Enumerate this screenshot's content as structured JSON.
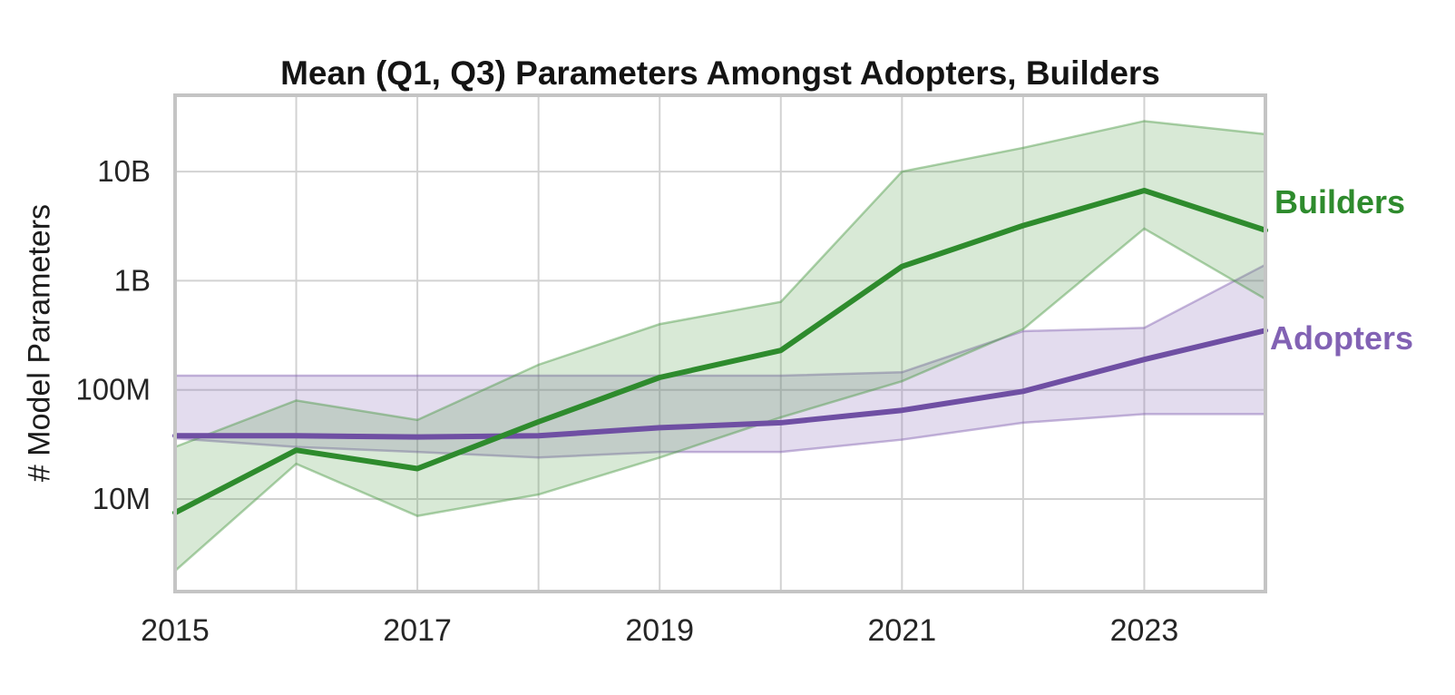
{
  "chart_data": {
    "type": "line",
    "title": "Mean (Q1, Q3) Parameters Amongst Adopters, Builders",
    "xlabel": "",
    "ylabel": "# Model Parameters",
    "y_scale": "log",
    "ylim": [
      1420000,
      50000000000
    ],
    "xlim": [
      2015,
      2024
    ],
    "grid": true,
    "legend_position": "right-outside-line-end",
    "x": [
      2015,
      2016,
      2017,
      2018,
      2019,
      2020,
      2021,
      2022,
      2023,
      2024
    ],
    "x_ticks": [
      {
        "value": 2015,
        "label": "2015"
      },
      {
        "value": 2017,
        "label": "2017"
      },
      {
        "value": 2019,
        "label": "2019"
      },
      {
        "value": 2021,
        "label": "2021"
      },
      {
        "value": 2023,
        "label": "2023"
      }
    ],
    "y_ticks": [
      {
        "value": 10000000000,
        "label": "10B"
      },
      {
        "value": 1000000000,
        "label": "1B"
      },
      {
        "value": 100000000,
        "label": "100M"
      },
      {
        "value": 10000000,
        "label": "10M"
      }
    ],
    "series": [
      {
        "name": "Builders",
        "color": "#2e8b2d",
        "label_color": "#2e8b2d",
        "band_description": "Q1-Q3 interquartile band",
        "mean": [
          7500000,
          28000000,
          19000000,
          51000000,
          130000000,
          230000000,
          1350000000,
          3200000000,
          6700000000,
          2900000000
        ],
        "q1": [
          2200000,
          21000000,
          7000000,
          11000000,
          24000000,
          56000000,
          120000000,
          360000000,
          3000000000,
          680000000
        ],
        "q3": [
          30000000,
          80000000,
          53000000,
          170000000,
          400000000,
          640000000,
          10000000000,
          16500000000,
          29000000000,
          22000000000
        ]
      },
      {
        "name": "Adopters",
        "color": "#6f4fa3",
        "label_color": "#8262b4",
        "band_description": "Q1-Q3 interquartile band",
        "mean": [
          38000000,
          38000000,
          37000000,
          38000000,
          45000000,
          50000000,
          65000000,
          97000000,
          190000000,
          350000000
        ],
        "q1": [
          36000000,
          30000000,
          27000000,
          24000000,
          27000000,
          27000000,
          35000000,
          50000000,
          60000000,
          60000000
        ],
        "q3": [
          135000000,
          135000000,
          135000000,
          135000000,
          135000000,
          135000000,
          145000000,
          345000000,
          370000000,
          1400000000
        ]
      }
    ],
    "style": {
      "grid_color": "#d2d2d2",
      "border_color": "#c4c4c4",
      "tick_label_color": "#262626",
      "band_fill_alpha": 0.22,
      "builders_band_fill": "#4c9a44",
      "adopters_band_fill": "#8060b0",
      "background": "#ffffff"
    }
  },
  "labels": {
    "builders": "Builders",
    "adopters": "Adopters"
  }
}
